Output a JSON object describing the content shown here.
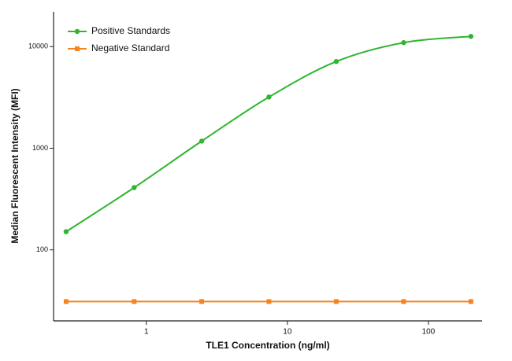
{
  "chart_data": {
    "type": "line",
    "log_x": true,
    "log_y": true,
    "legend": "top-left",
    "x_label": "TLE1 Concentration (ng/ml)",
    "y_label": "Median Fluorescent Intensity (MFI)",
    "x": [
      0.27,
      0.82,
      2.47,
      7.4,
      22.2,
      66.7,
      200
    ],
    "series": [
      {
        "name": "Positive Standards",
        "color": "#2fb52f",
        "values": [
          151,
          410,
          1175,
          3190,
          7130,
          10940,
          12600
        ]
      },
      {
        "name": "Negative Standard",
        "color": "#f5841f",
        "values": [
          31,
          31,
          31,
          31,
          31,
          31,
          31
        ]
      }
    ],
    "xlim": [
      0.22,
      240
    ],
    "ylim": [
      20,
      22000
    ],
    "xticks": [
      1,
      10,
      100
    ],
    "yticks": [
      100,
      1000,
      10000
    ]
  }
}
